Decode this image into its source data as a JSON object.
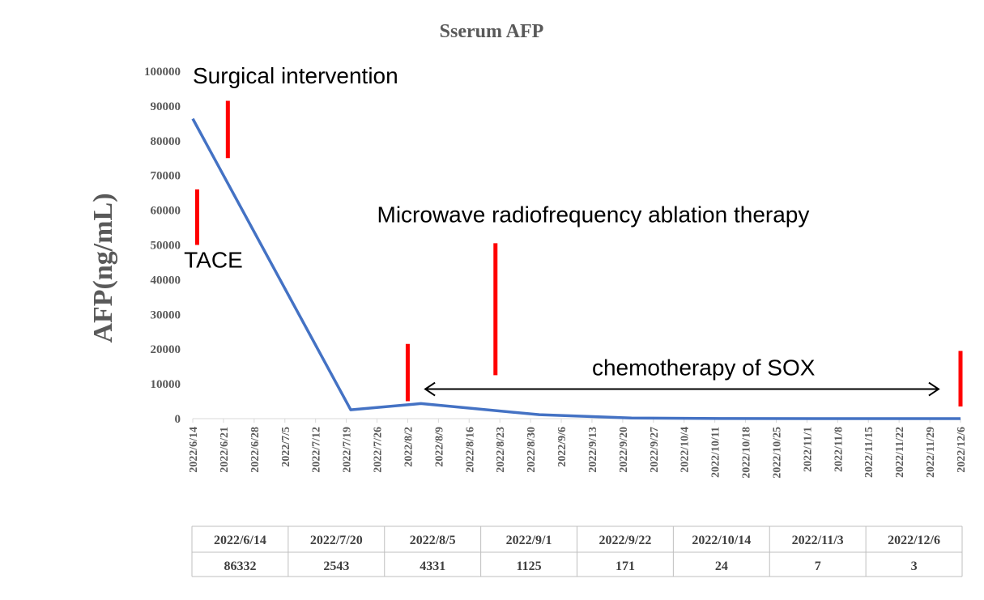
{
  "chart_data": {
    "type": "line",
    "title": "Sserum AFP",
    "ylabel": "AFP(ng/mL)",
    "xlabel": "",
    "ylim": [
      0,
      100000
    ],
    "y_ticks": [
      0,
      10000,
      20000,
      30000,
      40000,
      50000,
      60000,
      70000,
      80000,
      90000,
      100000
    ],
    "x_ticks": [
      "2022/6/14",
      "2022/6/21",
      "2022/6/28",
      "2022/7/5",
      "2022/7/12",
      "2022/7/19",
      "2022/7/26",
      "2022/8/2",
      "2022/8/9",
      "2022/8/16",
      "2022/8/23",
      "2022/8/30",
      "2022/9/6",
      "2022/9/13",
      "2022/9/20",
      "2022/9/27",
      "2022/10/4",
      "2022/10/11",
      "2022/10/18",
      "2022/10/25",
      "2022/11/1",
      "2022/11/8",
      "2022/11/15",
      "2022/11/22",
      "2022/11/29",
      "2022/12/6"
    ],
    "grid": false,
    "series": [
      {
        "color": "#4472c4",
        "x": [
          "2022/6/14",
          "2022/7/20",
          "2022/8/5",
          "2022/9/1",
          "2022/9/22",
          "2022/10/14",
          "2022/11/3",
          "2022/12/6"
        ],
        "values": [
          86332,
          2543,
          4331,
          1125,
          171,
          24,
          7,
          3
        ]
      }
    ],
    "event_markers": [
      {
        "date": "2022/6/15",
        "y_range": [
          50000,
          66000
        ],
        "color": "#ff0000"
      },
      {
        "date": "2022/6/22",
        "y_range": [
          75000,
          91500
        ],
        "color": "#ff0000"
      },
      {
        "date": "2022/8/2",
        "y_range": [
          5000,
          21500
        ],
        "color": "#ff0000"
      },
      {
        "date": "2022/8/22",
        "y_range": [
          12500,
          50500
        ],
        "color": "#ff0000"
      },
      {
        "date": "2022/12/6",
        "y_range": [
          3500,
          19500
        ],
        "color": "#ff0000"
      }
    ],
    "annotations": [
      {
        "text": "Surgical intervention",
        "date": "2022/6/14",
        "y": 96500
      },
      {
        "text": "TACE",
        "date": "2022/6/12",
        "y": 43500
      },
      {
        "text": "Microwave radiofrequency ablation therapy",
        "date": "2022/7/26",
        "y": 56500
      },
      {
        "text": "chemotherapy of SOX",
        "date": "2022/9/13",
        "y": 12500
      }
    ],
    "range_arrow": {
      "start": "2022/8/6",
      "end": "2022/12/1",
      "y": 8500,
      "color": "#000000"
    },
    "table": {
      "header": [
        "2022/6/14",
        "2022/7/20",
        "2022/8/5",
        "2022/9/1",
        "2022/9/22",
        "2022/10/14",
        "2022/11/3",
        "2022/12/6"
      ],
      "values": [
        "86332",
        "2543",
        "4331",
        "1125",
        "171",
        "24",
        "7",
        "3"
      ]
    }
  }
}
